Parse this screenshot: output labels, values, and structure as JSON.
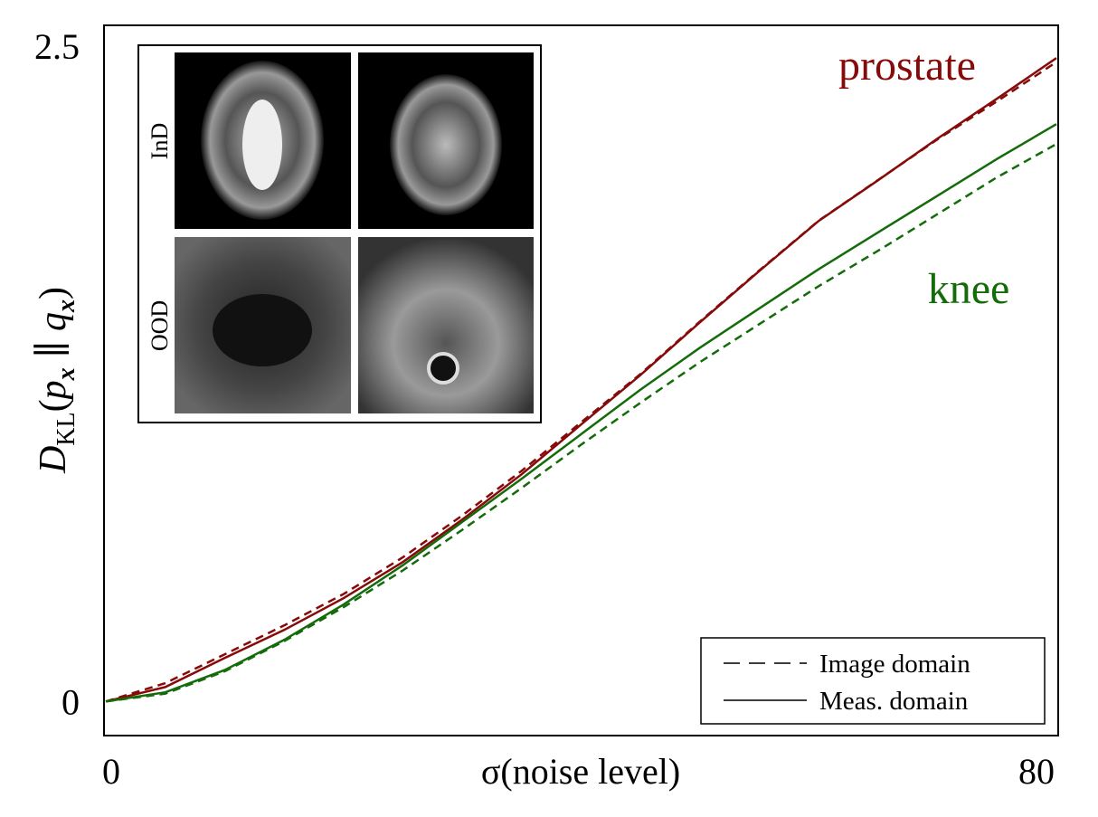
{
  "chart_data": {
    "type": "line",
    "xlabel": "σ(noise level)",
    "ylabel": [
      "D",
      "KL",
      "(",
      "p",
      "x",
      " ∥ ",
      "q",
      "x",
      ")"
    ],
    "x": [
      0,
      5,
      10,
      15,
      20,
      25,
      30,
      35,
      40,
      45,
      50,
      55,
      60,
      65,
      70,
      75,
      80
    ],
    "series": [
      {
        "name": "prostate",
        "color": "#870a0a",
        "image_values": [
          0,
          0.07,
          0.18,
          0.29,
          0.41,
          0.55,
          0.71,
          0.88,
          1.065,
          1.25,
          1.45,
          1.645,
          1.835,
          1.99,
          2.145,
          2.29,
          2.44
        ],
        "meas_values": [
          0,
          0.055,
          0.166,
          0.273,
          0.394,
          0.532,
          0.694,
          0.867,
          1.057,
          1.246,
          1.447,
          1.643,
          1.834,
          1.989,
          2.148,
          2.3,
          2.455
        ]
      },
      {
        "name": "knee",
        "color": "#146b0a",
        "image_values": [
          0,
          0.03,
          0.115,
          0.23,
          0.36,
          0.5,
          0.655,
          0.815,
          0.98,
          1.14,
          1.295,
          1.44,
          1.585,
          1.72,
          1.86,
          2.0,
          2.127
        ],
        "meas_values": [
          0,
          0.035,
          0.12,
          0.235,
          0.37,
          0.52,
          0.685,
          0.85,
          1.02,
          1.19,
          1.35,
          1.5,
          1.65,
          1.79,
          1.93,
          2.07,
          2.203
        ]
      }
    ],
    "xlim": [
      0,
      80
    ],
    "xticks": [
      0,
      80
    ],
    "ylim": [
      -0.13,
      2.58
    ],
    "yticks": [
      0,
      2.5
    ],
    "grid": false,
    "legend": {
      "corner": "lower right",
      "entries": [
        {
          "label": "Image domain",
          "dash": "dashed"
        },
        {
          "label": "Meas. domain",
          "dash": "solid"
        }
      ]
    },
    "inset": {
      "row_labels": [
        "InD",
        "OOD"
      ]
    }
  }
}
